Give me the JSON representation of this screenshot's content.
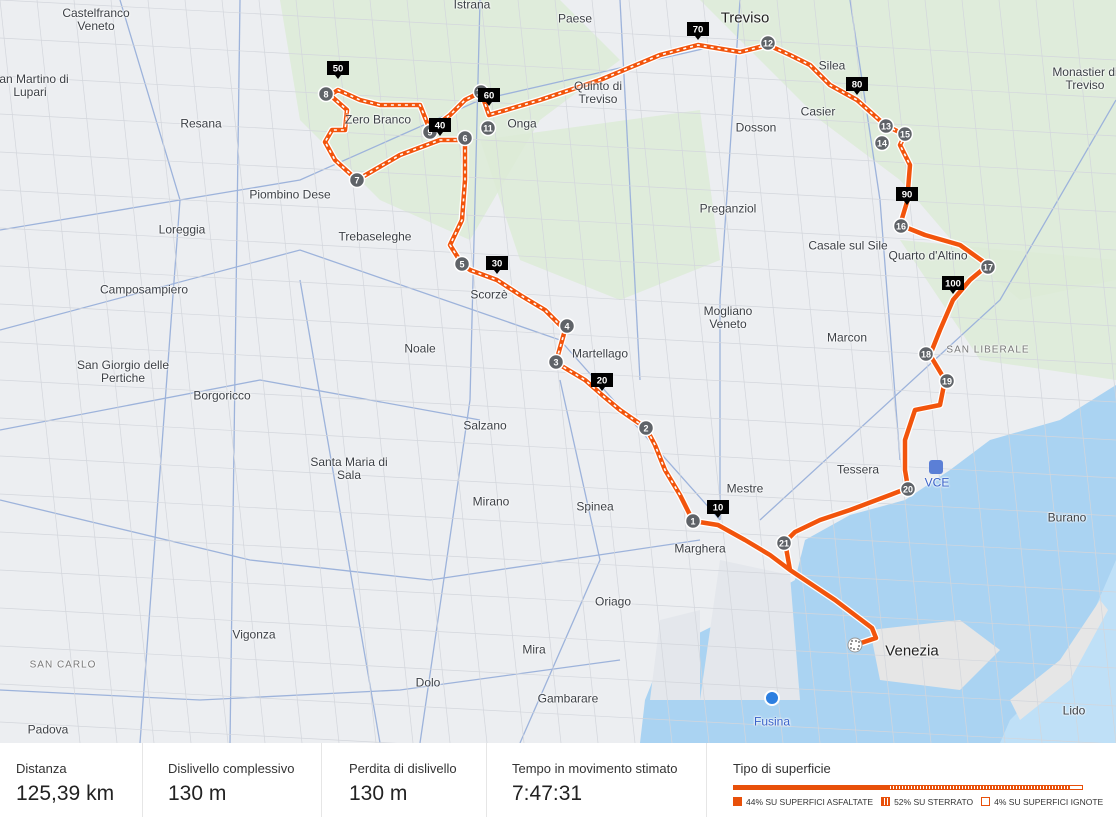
{
  "map": {
    "places": [
      "Castelfranco Veneto",
      "Istrana",
      "Paese",
      "Treviso",
      "San Martino di Lupari",
      "Resana",
      "Quinto di Treviso",
      "Silea",
      "Monastier di Treviso",
      "Casier",
      "Dosson",
      "Piombino Dese",
      "Loreggia",
      "Trebaseleghe",
      "Preganziol",
      "Casale sul Sile",
      "Quarto d'Altino",
      "Camposampiero",
      "Scorzè",
      "Mogliano Veneto",
      "Marcon",
      "Noale",
      "Martellago",
      "SAN LIBERALE",
      "San Giorgio delle Pertiche",
      "Borgoricco",
      "Salzano",
      "Santa Maria di Sala",
      "Tessera",
      "VCE",
      "Mirano",
      "Spinea",
      "Mestre",
      "Marghera",
      "Burano",
      "Oriago",
      "Vigonza",
      "SAN CARLO",
      "Mira",
      "Dolo",
      "Gambarare",
      "Padova",
      "Fusina",
      "Venezia",
      "Lido",
      "Onga",
      "Zero Branco"
    ],
    "waypoints": [
      "1",
      "2",
      "3",
      "4",
      "5",
      "6",
      "7",
      "8",
      "9",
      "10",
      "11",
      "12",
      "13",
      "14",
      "15",
      "16",
      "17",
      "18",
      "19",
      "20",
      "21"
    ],
    "km_markers": [
      "10",
      "20",
      "30",
      "40",
      "50",
      "60",
      "70",
      "80",
      "90",
      "100"
    ],
    "route_color": "#f2540c",
    "water_color": "#aad3f2",
    "icons": {
      "start": "checkered-flag-icon",
      "airport": "airplane-icon",
      "poi": "camera-icon"
    }
  },
  "stats": [
    {
      "label": "Distanza",
      "value": "125,39 km"
    },
    {
      "label": "Dislivello complessivo",
      "value": "130 m"
    },
    {
      "label": "Perdita di dislivello",
      "value": "130 m"
    },
    {
      "label": "Tempo in movimento stimato",
      "value": "7:47:31"
    }
  ],
  "surface": {
    "title": "Tipo di superficie",
    "items": [
      {
        "label": "44% SU SUPERFICI ASFALTATE",
        "percent": 44
      },
      {
        "label": "52% SU STERRATO",
        "percent": 52
      },
      {
        "label": "4% SU SUPERFICI IGNOTE",
        "percent": 4
      }
    ]
  }
}
